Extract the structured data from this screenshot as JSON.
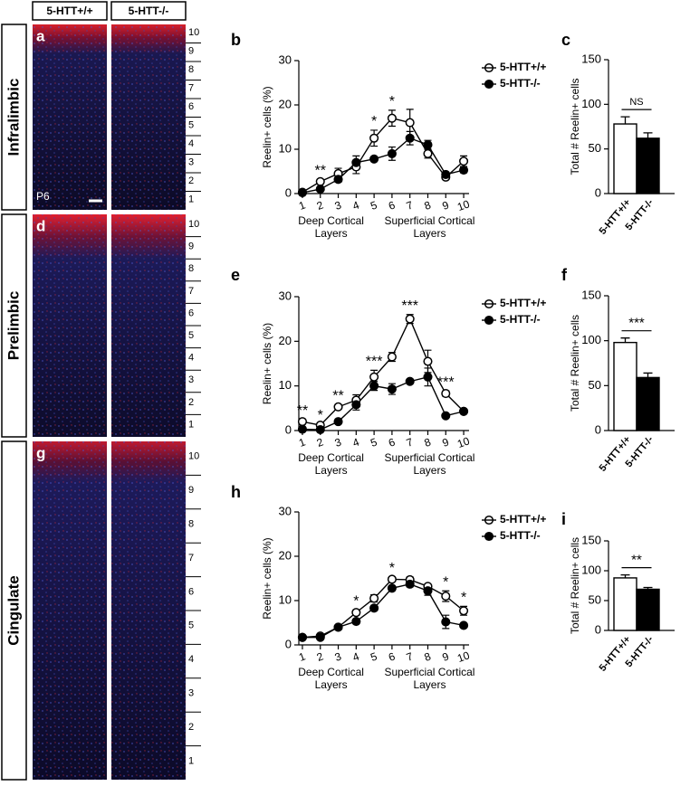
{
  "figure": {
    "columns": [
      "5-HTT+/+",
      "5-HTT-/-"
    ],
    "rows": [
      {
        "letter": "a",
        "region": "Infralimbic",
        "age": "P6",
        "layers": [
          10,
          9,
          8,
          7,
          6,
          5,
          4,
          3,
          2,
          1
        ]
      },
      {
        "letter": "d",
        "region": "Prelimbic",
        "layers": [
          10,
          9,
          8,
          7,
          6,
          5,
          4,
          3,
          2,
          1
        ]
      },
      {
        "letter": "g",
        "region": "Cingulate",
        "layers": [
          10,
          9,
          8,
          7,
          6,
          5,
          4,
          3,
          2,
          1
        ]
      }
    ]
  },
  "chart_data": [
    {
      "type": "line",
      "label": "b",
      "ylabel": "Reelin+ cells (%)",
      "x": [
        1,
        2,
        3,
        4,
        5,
        6,
        7,
        8,
        9,
        10
      ],
      "xlim": [
        0.8,
        10.3
      ],
      "xticks": [
        1,
        2,
        3,
        4,
        5,
        6,
        7,
        8,
        9,
        10
      ],
      "ylim": [
        0,
        30
      ],
      "yticks": [
        0,
        10,
        20,
        30
      ],
      "x_group_labels": [
        [
          "Deep Cortical",
          "Layers"
        ],
        [
          "Superficial Cortical",
          "Layers"
        ]
      ],
      "series": [
        {
          "name": "5-HTT+/+",
          "color": "#000000",
          "fill": "#ffffff",
          "values": [
            0.3,
            2.7,
            4.5,
            6,
            12.5,
            17,
            16,
            9,
            3.7,
            7.3
          ],
          "errors": [
            0.3,
            0.5,
            1.2,
            1.5,
            1.8,
            1.8,
            3,
            1,
            0.5,
            1.2
          ]
        },
        {
          "name": "5-HTT-/-",
          "color": "#000000",
          "fill": "#000000",
          "values": [
            0.2,
            1,
            3.2,
            7,
            7.8,
            9,
            12.5,
            11,
            4.3,
            5.3
          ],
          "errors": [
            0.2,
            0.4,
            0.6,
            1.5,
            0.5,
            1.5,
            1.5,
            1,
            0.5,
            0.6
          ]
        }
      ],
      "annotations": [
        {
          "x": 2,
          "text": "**"
        },
        {
          "x": 5,
          "text": "*"
        },
        {
          "x": 6,
          "text": "*"
        }
      ]
    },
    {
      "type": "bar",
      "label": "c",
      "ylabel": "Total # Reelin+ cells",
      "categories": [
        "5-HTT+/+",
        "5-HTT-/-"
      ],
      "values": [
        78,
        62
      ],
      "errors": [
        8,
        6
      ],
      "colors": [
        "#ffffff",
        "#000000"
      ],
      "ylim": [
        0,
        150
      ],
      "yticks": [
        0,
        50,
        100,
        150
      ],
      "annotation": "NS"
    },
    {
      "type": "line",
      "label": "e",
      "ylabel": "Reelin+ cells (%)",
      "x": [
        1,
        2,
        3,
        4,
        5,
        6,
        7,
        8,
        9,
        10
      ],
      "xlim": [
        0.8,
        10.3
      ],
      "xticks": [
        1,
        2,
        3,
        4,
        5,
        6,
        7,
        8,
        9,
        10
      ],
      "ylim": [
        0,
        30
      ],
      "yticks": [
        0,
        10,
        20,
        30
      ],
      "x_group_labels": [
        [
          "Deep Cortical",
          "Layers"
        ],
        [
          "Superficial Cortical",
          "Layers"
        ]
      ],
      "series": [
        {
          "name": "5-HTT+/+",
          "color": "#000000",
          "fill": "#ffffff",
          "values": [
            2,
            1.2,
            5.3,
            6.8,
            12,
            16.5,
            25,
            15.5,
            8.3,
            4.3
          ],
          "errors": [
            0.5,
            0.3,
            0.5,
            1.2,
            1.5,
            1,
            1,
            2.5,
            0.6,
            0.5
          ]
        },
        {
          "name": "5-HTT-/-",
          "color": "#000000",
          "fill": "#000000",
          "values": [
            0.3,
            0.2,
            2,
            5.8,
            10,
            9.3,
            11,
            12,
            3.3,
            4.3
          ],
          "errors": [
            0.2,
            0.2,
            0.4,
            1.2,
            1,
            1.2,
            0.5,
            2,
            0.4,
            0.5
          ]
        }
      ],
      "annotations": [
        {
          "x": 1,
          "text": "**"
        },
        {
          "x": 2,
          "text": "*"
        },
        {
          "x": 3,
          "text": "**"
        },
        {
          "x": 5,
          "text": "***"
        },
        {
          "x": 7,
          "text": "***"
        },
        {
          "x": 9,
          "text": "***"
        }
      ]
    },
    {
      "type": "bar",
      "label": "f",
      "ylabel": "Total # Reelin+ cells",
      "categories": [
        "5-HTT+/+",
        "5-HTT-/-"
      ],
      "values": [
        98,
        59
      ],
      "errors": [
        5,
        5
      ],
      "colors": [
        "#ffffff",
        "#000000"
      ],
      "ylim": [
        0,
        150
      ],
      "yticks": [
        0,
        50,
        100,
        150
      ],
      "annotation": "***"
    },
    {
      "type": "line",
      "label": "h",
      "ylabel": "Reelin+ cells (%)",
      "x": [
        1,
        2,
        3,
        4,
        5,
        6,
        7,
        8,
        9,
        10
      ],
      "xlim": [
        0.8,
        10.3
      ],
      "xticks": [
        1,
        2,
        3,
        4,
        5,
        6,
        7,
        8,
        9,
        10
      ],
      "ylim": [
        0,
        30
      ],
      "yticks": [
        0,
        10,
        20,
        30
      ],
      "x_group_labels": [
        [
          "Deep Cortical",
          "Layers"
        ],
        [
          "Superficial Cortical",
          "Layers"
        ]
      ],
      "series": [
        {
          "name": "5-HTT+/+",
          "color": "#000000",
          "fill": "#ffffff",
          "values": [
            1.7,
            2,
            4,
            7.3,
            10.5,
            14.8,
            14.7,
            13.2,
            11,
            7.7
          ],
          "errors": [
            0.3,
            0.3,
            0.4,
            0.6,
            0.8,
            0.5,
            0.6,
            0.5,
            1.2,
            1
          ]
        },
        {
          "name": "5-HTT-/-",
          "color": "#000000",
          "fill": "#000000",
          "values": [
            1.7,
            1.7,
            4,
            5.3,
            8.3,
            12.8,
            13.7,
            12.2,
            5.2,
            4.4
          ],
          "errors": [
            0.3,
            0.3,
            0.4,
            0.5,
            0.6,
            0.5,
            0.6,
            1,
            1.5,
            0.4
          ]
        }
      ],
      "annotations": [
        {
          "x": 4,
          "text": "*"
        },
        {
          "x": 6,
          "text": "*"
        },
        {
          "x": 9,
          "text": "*"
        },
        {
          "x": 10,
          "text": "*"
        }
      ]
    },
    {
      "type": "bar",
      "label": "i",
      "ylabel": "Total # Reelin+ cells",
      "categories": [
        "5-HTT+/+",
        "5-HTT-/-"
      ],
      "values": [
        88,
        69
      ],
      "errors": [
        5,
        3
      ],
      "colors": [
        "#ffffff",
        "#000000"
      ],
      "ylim": [
        0,
        150
      ],
      "yticks": [
        0,
        50,
        100,
        150
      ],
      "annotation": "**"
    }
  ]
}
